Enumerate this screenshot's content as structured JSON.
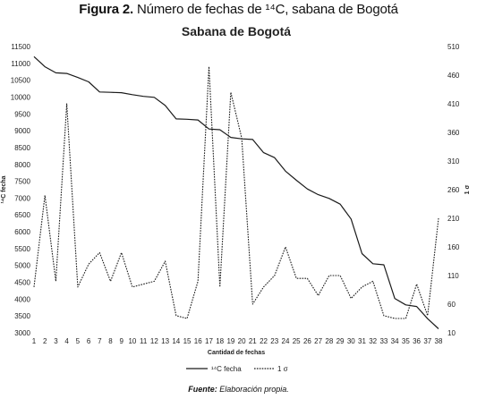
{
  "figure": {
    "label": "Figura 2.",
    "caption": "Número de fechas de ¹⁴C, sabana de Bogotá",
    "source_label": "Fuente:",
    "source_text": "Elaboración propia."
  },
  "chart_data": {
    "type": "line",
    "title": "Sabana de Bogotá",
    "xlabel": "Cantidad de fechas",
    "ylabel_left": "¹⁴C fecha",
    "ylabel_right": "1 σ",
    "x": [
      1,
      2,
      3,
      4,
      5,
      6,
      7,
      8,
      9,
      10,
      11,
      12,
      13,
      14,
      15,
      16,
      17,
      18,
      19,
      20,
      21,
      22,
      23,
      24,
      25,
      26,
      27,
      28,
      29,
      30,
      31,
      32,
      33,
      34,
      35,
      36,
      37,
      38
    ],
    "ylim_left": [
      3000,
      11500
    ],
    "yticks_left": [
      3000,
      3500,
      4000,
      4500,
      5000,
      5500,
      6000,
      6500,
      7000,
      7500,
      8000,
      8500,
      9000,
      9500,
      10000,
      10500,
      11000,
      11500
    ],
    "ylim_right": [
      10,
      510
    ],
    "yticks_right": [
      10,
      60,
      110,
      160,
      210,
      260,
      310,
      360,
      410,
      460,
      510
    ],
    "grid": false,
    "legend_position": "bottom",
    "series": [
      {
        "name": "¹⁴C fecha",
        "axis": "left",
        "style": "solid",
        "values": [
          11200,
          10900,
          10720,
          10700,
          10580,
          10450,
          10150,
          10140,
          10130,
          10070,
          10020,
          9990,
          9750,
          9350,
          9340,
          9320,
          9050,
          9030,
          8800,
          8760,
          8740,
          8350,
          8200,
          7800,
          7530,
          7270,
          7100,
          6990,
          6820,
          6380,
          5350,
          5050,
          5020,
          4020,
          3830,
          3780,
          3420,
          3120
        ]
      },
      {
        "name": "1 σ",
        "axis": "right",
        "style": "dotted",
        "values": [
          90,
          250,
          100,
          410,
          90,
          130,
          150,
          100,
          150,
          90,
          95,
          100,
          135,
          40,
          35,
          100,
          475,
          90,
          430,
          350,
          60,
          90,
          110,
          160,
          105,
          105,
          75,
          110,
          110,
          70,
          90,
          100,
          40,
          35,
          35,
          95,
          40,
          210
        ]
      }
    ]
  }
}
